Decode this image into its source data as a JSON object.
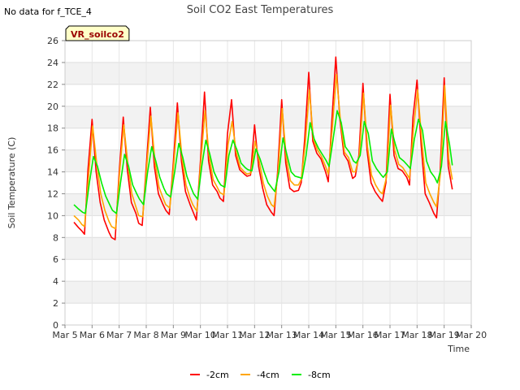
{
  "corner_note": "No data for f_TCE_4",
  "chart_data": {
    "type": "line",
    "title": "Soil CO2 East Temperatures",
    "xlabel": "Time",
    "ylabel": "Soil Temperature (C)",
    "ylim": [
      0,
      26
    ],
    "y_ticks": [
      0,
      2,
      4,
      6,
      8,
      10,
      12,
      14,
      16,
      18,
      20,
      22,
      24,
      26
    ],
    "xlim": [
      5,
      20
    ],
    "x_ticks": [
      5,
      6,
      7,
      8,
      9,
      10,
      11,
      12,
      13,
      14,
      15,
      16,
      17,
      18,
      19,
      20
    ],
    "x_tick_labels": [
      "Mar 5",
      "Mar 6",
      "Mar 7",
      "Mar 8",
      "Mar 9",
      "Mar 10",
      "Mar 11",
      "Mar 12",
      "Mar 13",
      "Mar 14",
      "Mar 15",
      "Mar 16",
      "Mar 17",
      "Mar 18",
      "Mar 19",
      "Mar 20"
    ],
    "grid": true,
    "banded_background": true,
    "legend_position": "bottom-center",
    "station_label": "VR_soilco2",
    "series": [
      {
        "name": "-2cm",
        "color": "#ff0000",
        "x": [
          5.33,
          5.5,
          5.62,
          5.72,
          5.85,
          6.0,
          6.15,
          6.3,
          6.45,
          6.62,
          6.72,
          6.85,
          7.0,
          7.15,
          7.3,
          7.45,
          7.62,
          7.72,
          7.85,
          8.0,
          8.15,
          8.3,
          8.45,
          8.62,
          8.72,
          8.85,
          9.0,
          9.15,
          9.3,
          9.45,
          9.62,
          9.72,
          9.85,
          10.0,
          10.15,
          10.3,
          10.45,
          10.62,
          10.72,
          10.85,
          11.0,
          11.15,
          11.3,
          11.45,
          11.62,
          11.72,
          11.85,
          12.0,
          12.15,
          12.3,
          12.45,
          12.62,
          12.72,
          12.85,
          13.0,
          13.15,
          13.3,
          13.45,
          13.62,
          13.72,
          13.85,
          14.0,
          14.15,
          14.3,
          14.45,
          14.62,
          14.72,
          14.85,
          15.0,
          15.15,
          15.3,
          15.45,
          15.62,
          15.72,
          15.85,
          16.0,
          16.15,
          16.3,
          16.45,
          16.62,
          16.72,
          16.85,
          17.0,
          17.15,
          17.3,
          17.45,
          17.62,
          17.72,
          17.85,
          18.0,
          18.15,
          18.3,
          18.45,
          18.62,
          18.72,
          18.85,
          19.0,
          19.15,
          19.3
        ],
        "y": [
          9.4,
          8.9,
          8.6,
          8.3,
          14.2,
          18.8,
          14.0,
          11.2,
          9.6,
          8.5,
          8.0,
          7.8,
          14.0,
          19.0,
          14.2,
          11.2,
          10.2,
          9.3,
          9.1,
          14.5,
          19.9,
          14.5,
          12.0,
          11.0,
          10.5,
          10.1,
          14.8,
          20.3,
          15.0,
          12.2,
          11.0,
          10.4,
          9.6,
          15.0,
          21.3,
          15.0,
          12.8,
          12.2,
          11.6,
          11.3,
          17.5,
          20.6,
          15.5,
          14.2,
          13.8,
          13.6,
          13.7,
          18.3,
          14.5,
          12.5,
          11.0,
          10.3,
          10.0,
          14.0,
          20.6,
          14.8,
          12.5,
          12.2,
          12.3,
          13.0,
          17.0,
          23.1,
          16.8,
          15.7,
          15.2,
          14.0,
          13.1,
          18.5,
          24.5,
          18.8,
          15.6,
          15.0,
          13.4,
          13.6,
          15.5,
          22.1,
          16.0,
          13.0,
          12.2,
          11.6,
          11.3,
          13.0,
          21.1,
          15.5,
          14.3,
          14.1,
          13.5,
          12.8,
          19.0,
          22.4,
          16.5,
          12.0,
          11.2,
          10.2,
          9.8,
          14.0,
          22.6,
          14.5,
          12.4
        ]
      },
      {
        "name": "-4cm",
        "color": "#ffa500",
        "x": [
          5.33,
          5.5,
          5.62,
          5.72,
          5.9,
          6.02,
          6.17,
          6.32,
          6.47,
          6.62,
          6.72,
          6.87,
          7.02,
          7.17,
          7.32,
          7.47,
          7.62,
          7.72,
          7.87,
          8.02,
          8.17,
          8.32,
          8.47,
          8.62,
          8.72,
          8.87,
          9.02,
          9.17,
          9.32,
          9.47,
          9.62,
          9.72,
          9.87,
          10.02,
          10.17,
          10.32,
          10.47,
          10.62,
          10.72,
          10.87,
          11.02,
          11.17,
          11.32,
          11.47,
          11.62,
          11.72,
          11.87,
          12.02,
          12.17,
          12.32,
          12.47,
          12.62,
          12.72,
          12.87,
          13.02,
          13.17,
          13.32,
          13.47,
          13.62,
          13.72,
          13.87,
          14.02,
          14.17,
          14.32,
          14.47,
          14.62,
          14.72,
          14.87,
          15.02,
          15.17,
          15.32,
          15.47,
          15.62,
          15.72,
          15.87,
          16.02,
          16.17,
          16.32,
          16.47,
          16.62,
          16.72,
          16.87,
          17.02,
          17.17,
          17.32,
          17.47,
          17.62,
          17.72,
          17.87,
          18.02,
          18.17,
          18.32,
          18.47,
          18.62,
          18.72,
          18.87,
          19.02,
          19.17,
          19.3
        ],
        "y": [
          10.0,
          9.6,
          9.2,
          9.0,
          14.5,
          18.2,
          14.8,
          12.0,
          10.5,
          9.5,
          9.0,
          8.8,
          14.0,
          18.3,
          14.8,
          12.0,
          10.8,
          10.0,
          9.9,
          14.6,
          19.1,
          15.0,
          12.6,
          11.6,
          11.0,
          10.7,
          14.8,
          19.4,
          15.3,
          12.8,
          11.6,
          11.0,
          10.4,
          15.0,
          19.6,
          15.5,
          13.3,
          12.6,
          12.1,
          11.9,
          16.5,
          18.6,
          15.8,
          14.4,
          14.0,
          13.8,
          13.9,
          16.8,
          15.0,
          13.0,
          11.8,
          11.0,
          10.8,
          14.0,
          19.8,
          15.3,
          13.2,
          12.8,
          12.8,
          13.3,
          16.5,
          21.5,
          17.0,
          16.0,
          15.4,
          14.5,
          13.8,
          18.0,
          22.9,
          18.7,
          15.8,
          15.3,
          14.0,
          14.0,
          15.5,
          21.2,
          16.3,
          13.7,
          12.8,
          12.2,
          12.0,
          13.5,
          20.1,
          16.0,
          14.7,
          14.4,
          13.8,
          13.4,
          18.0,
          21.5,
          17.0,
          13.0,
          12.0,
          11.2,
          10.8,
          14.0,
          21.9,
          15.2,
          13.3
        ]
      },
      {
        "name": "-8cm",
        "color": "#00ee00",
        "x": [
          5.33,
          5.5,
          5.65,
          5.75,
          5.9,
          6.05,
          6.2,
          6.35,
          6.5,
          6.65,
          6.75,
          6.9,
          7.05,
          7.2,
          7.35,
          7.5,
          7.65,
          7.75,
          7.9,
          8.05,
          8.2,
          8.35,
          8.5,
          8.65,
          8.75,
          8.9,
          9.05,
          9.2,
          9.35,
          9.5,
          9.65,
          9.75,
          9.9,
          10.05,
          10.2,
          10.35,
          10.5,
          10.65,
          10.75,
          10.9,
          11.05,
          11.2,
          11.35,
          11.5,
          11.65,
          11.75,
          11.9,
          12.05,
          12.2,
          12.35,
          12.5,
          12.65,
          12.75,
          12.9,
          13.05,
          13.2,
          13.35,
          13.5,
          13.65,
          13.75,
          13.9,
          14.05,
          14.2,
          14.35,
          14.5,
          14.65,
          14.75,
          14.9,
          15.05,
          15.2,
          15.35,
          15.5,
          15.65,
          15.75,
          15.9,
          16.05,
          16.2,
          16.35,
          16.5,
          16.65,
          16.75,
          16.9,
          17.05,
          17.2,
          17.35,
          17.5,
          17.65,
          17.75,
          17.9,
          18.05,
          18.2,
          18.35,
          18.5,
          18.65,
          18.75,
          18.9,
          19.05,
          19.2,
          19.3
        ],
        "y": [
          11.0,
          10.6,
          10.3,
          10.2,
          13.0,
          15.4,
          14.5,
          13.0,
          11.8,
          11.0,
          10.5,
          10.2,
          13.0,
          15.6,
          14.5,
          12.8,
          12.0,
          11.5,
          11.0,
          14.0,
          16.3,
          15.0,
          13.5,
          12.5,
          12.0,
          11.7,
          14.0,
          16.6,
          15.3,
          13.6,
          12.6,
          12.0,
          11.5,
          14.5,
          16.9,
          15.6,
          14.0,
          13.2,
          12.8,
          12.6,
          15.5,
          16.9,
          16.0,
          14.8,
          14.4,
          14.2,
          14.1,
          16.1,
          15.2,
          14.0,
          13.0,
          12.5,
          12.2,
          14.0,
          17.1,
          15.5,
          14.0,
          13.6,
          13.5,
          13.4,
          15.5,
          18.5,
          17.0,
          16.2,
          15.6,
          15.0,
          14.5,
          17.0,
          19.6,
          18.5,
          16.3,
          15.8,
          15.0,
          14.8,
          15.5,
          18.6,
          17.5,
          15.0,
          14.3,
          13.8,
          13.5,
          14.0,
          17.9,
          16.5,
          15.3,
          15.0,
          14.6,
          14.3,
          17.0,
          18.8,
          17.8,
          15.0,
          14.0,
          13.5,
          13.0,
          14.5,
          18.6,
          16.5,
          14.6
        ]
      }
    ]
  }
}
